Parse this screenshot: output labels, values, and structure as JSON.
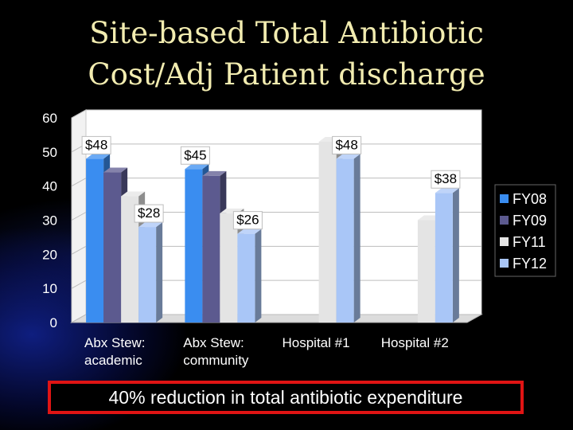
{
  "title": {
    "line1": "Site-based Total Antibiotic",
    "line2": "Cost/Adj Patient discharge"
  },
  "callout": "40% reduction in total antibiotic expenditure",
  "colors": {
    "background": "#000000",
    "title": "#f2ecb0",
    "callout_border": "#e01414",
    "FY08": "#3a8df0",
    "FY09": "#5c5a8f",
    "FY11": "#e4e4e4",
    "FY12": "#a9c6f7"
  },
  "chart_data": {
    "type": "bar",
    "bar_style": "3d-clustered",
    "categories": [
      [
        "Abx Stew:",
        "academic"
      ],
      [
        "Abx Stew:",
        "community"
      ],
      [
        "Hospital #1"
      ],
      [
        "Hospital #2"
      ]
    ],
    "series": [
      {
        "name": "FY08",
        "color": "#3a8df0",
        "values": [
          48,
          45,
          null,
          null
        ]
      },
      {
        "name": "FY09",
        "color": "#5c5a8f",
        "values": [
          44,
          43,
          null,
          null
        ]
      },
      {
        "name": "FY11",
        "color": "#e4e4e4",
        "values": [
          37,
          32,
          53,
          30
        ]
      },
      {
        "name": "FY12",
        "color": "#a9c6f7",
        "values": [
          28,
          26,
          48,
          38
        ]
      }
    ],
    "data_labels": [
      {
        "category": 0,
        "series": "FY08",
        "text": "$48"
      },
      {
        "category": 0,
        "series": "FY12",
        "text": "$28"
      },
      {
        "category": 1,
        "series": "FY08",
        "text": "$45"
      },
      {
        "category": 1,
        "series": "FY12",
        "text": "$26"
      },
      {
        "category": 2,
        "series": "FY12",
        "text": "$48"
      },
      {
        "category": 3,
        "series": "FY12",
        "text": "$38"
      }
    ],
    "y_ticks": [
      0,
      10,
      20,
      30,
      40,
      50,
      60
    ],
    "ylim": [
      0,
      60
    ],
    "grid": true,
    "legend_position": "right"
  }
}
